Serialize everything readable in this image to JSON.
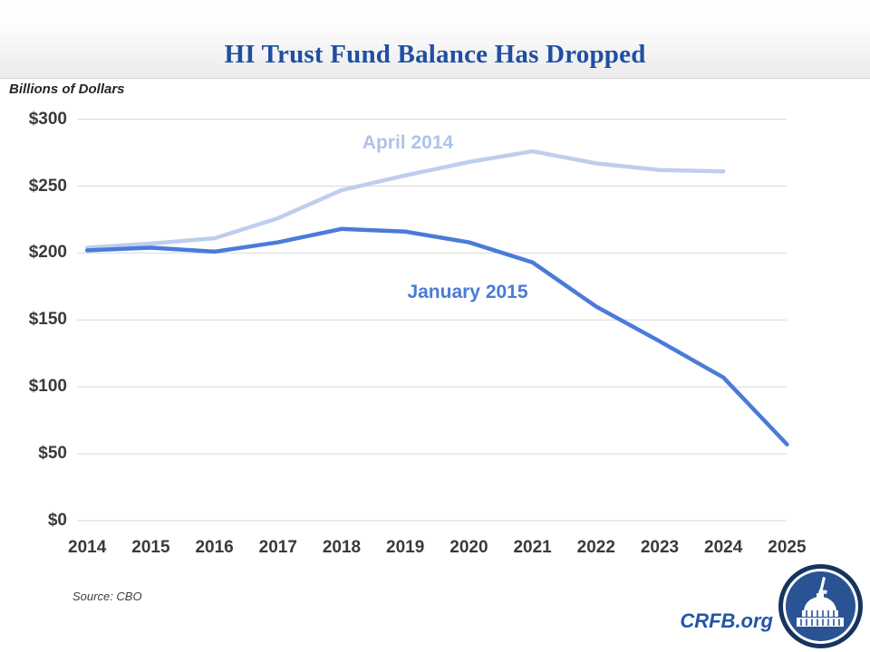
{
  "title": "HI Trust Fund Balance Has Dropped",
  "y_axis_unit": "Billions of Dollars",
  "source_note": "Source: CBO",
  "brand": {
    "text": "CRFB.org",
    "logo_icon": "capitol-building-icon"
  },
  "colors": {
    "title_blue": "#1F4FA3",
    "april_2014_line": "#BDCEEF",
    "april_2014_label": "#AEC3EB",
    "january_2015_line": "#4A7BD9",
    "gridline": "#D9D9D9",
    "axis_text": "#3A3A3A",
    "brand_blue": "#2155A8",
    "logo_navy": "#15345E",
    "logo_blue": "#2A5394"
  },
  "chart_data": {
    "type": "line",
    "title": "HI Trust Fund Balance Has Dropped",
    "ylabel": "Billions of Dollars",
    "xlabel": "",
    "ylim": [
      0,
      300
    ],
    "grid": "horizontal",
    "legend": "inline-labels",
    "categories": [
      "2014",
      "2015",
      "2016",
      "2017",
      "2018",
      "2019",
      "2020",
      "2021",
      "2022",
      "2023",
      "2024",
      "2025"
    ],
    "y_ticks": [
      {
        "label": "$300",
        "value": 300
      },
      {
        "label": "$250",
        "value": 250
      },
      {
        "label": "$200",
        "value": 200
      },
      {
        "label": "$150",
        "value": 150
      },
      {
        "label": "$100",
        "value": 100
      },
      {
        "label": "$50",
        "value": 50
      },
      {
        "label": "$0",
        "value": 0
      }
    ],
    "series": [
      {
        "name": "April 2014",
        "color": "#BDCEEF",
        "values": [
          204,
          207,
          211,
          226,
          247,
          258,
          268,
          276,
          267,
          262,
          261
        ]
      },
      {
        "name": "January 2015",
        "color": "#4A7BD9",
        "values": [
          202,
          204,
          201,
          208,
          218,
          216,
          208,
          193,
          160,
          134,
          107,
          57
        ]
      }
    ]
  }
}
